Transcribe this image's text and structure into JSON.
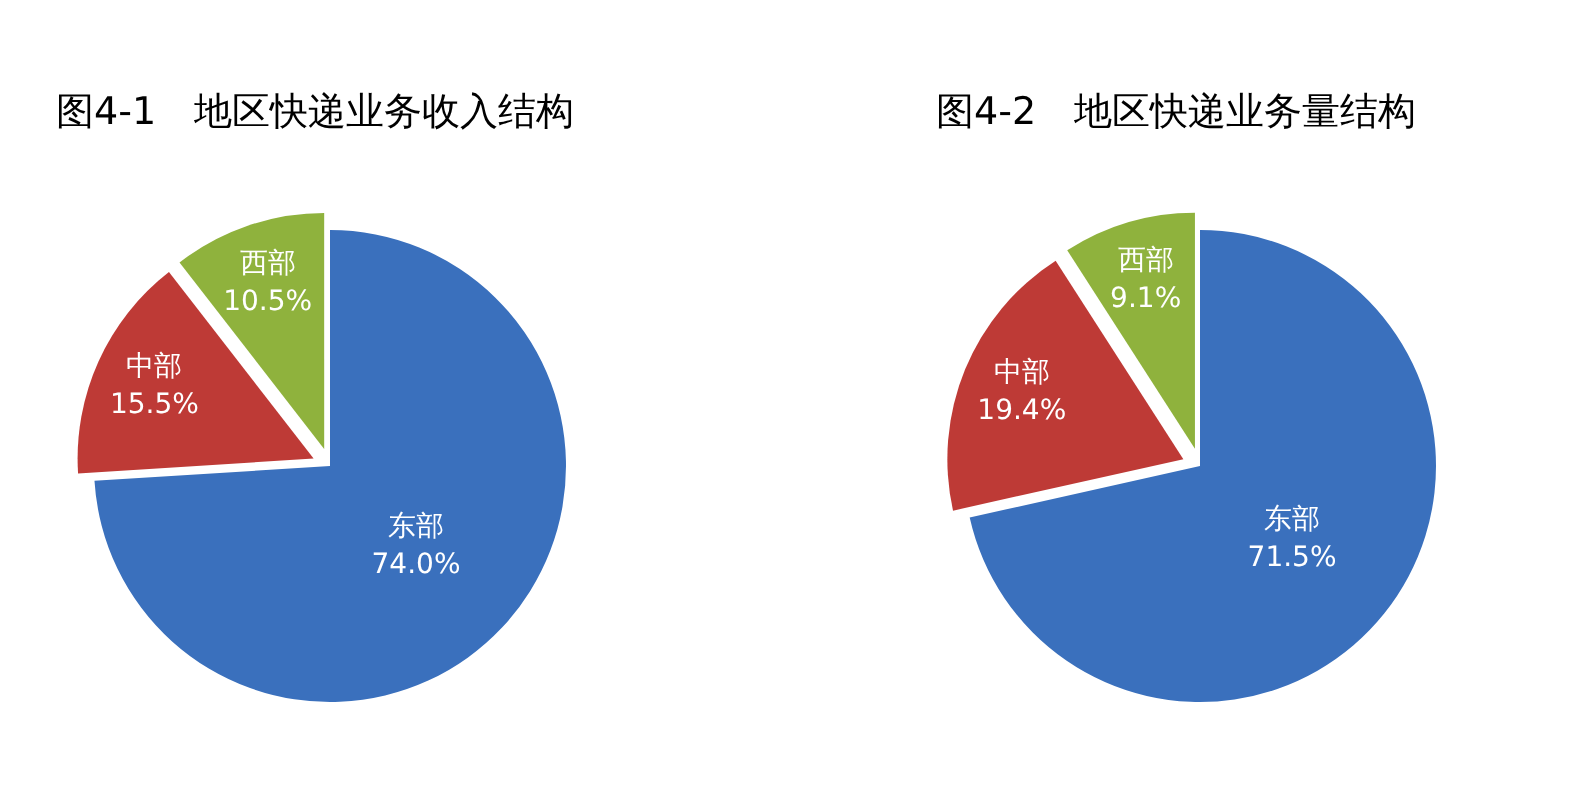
{
  "chart_data": [
    {
      "type": "pie",
      "title": "图4-1　地区快递业务收入结构",
      "categories": [
        "东部",
        "中部",
        "西部"
      ],
      "values": [
        74.0,
        15.5,
        10.5
      ],
      "colors": [
        "#3a70bd",
        "#be3a36",
        "#8fb23d"
      ],
      "value_labels": [
        "74.0%",
        "15.5%",
        "10.5%"
      ]
    },
    {
      "type": "pie",
      "title": "图4-2　地区快递业务量结构",
      "categories": [
        "东部",
        "中部",
        "西部"
      ],
      "values": [
        71.5,
        19.4,
        9.1
      ],
      "colors": [
        "#3a70bd",
        "#be3a36",
        "#8fb23d"
      ],
      "value_labels": [
        "71.5%",
        "19.4%",
        "9.1%"
      ]
    }
  ]
}
